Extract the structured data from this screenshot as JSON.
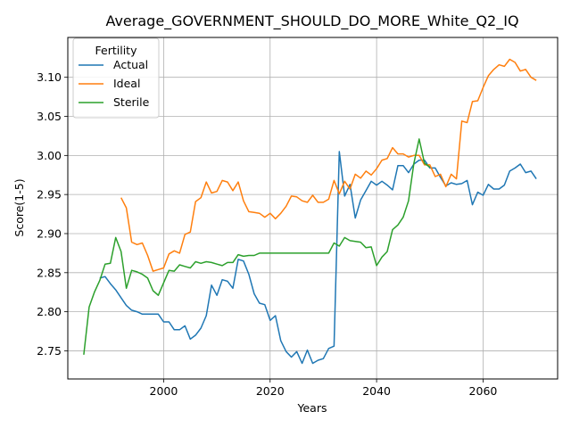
{
  "chart_data": {
    "type": "line",
    "title": "Average_GOVERNMENT_SHOULD_DO_MORE_White_Q2_IQ",
    "xlabel": "Years",
    "ylabel": "Score(1-5)",
    "xlim": [
      1982,
      2074
    ],
    "ylim": [
      2.714,
      3.151
    ],
    "xticks": [
      2000,
      2020,
      2040,
      2060
    ],
    "yticks": [
      2.75,
      2.8,
      2.85,
      2.9,
      2.95,
      3.0,
      3.05,
      3.1
    ],
    "grid": true,
    "legend": {
      "title": "Fertility",
      "placement": "top-left"
    },
    "series": [
      {
        "name": "Actual",
        "color": "#1f77b4",
        "x": [
          1988,
          1989,
          1990,
          1991,
          1992,
          1993,
          1994,
          1995,
          1996,
          1997,
          1998,
          1999,
          2000,
          2001,
          2002,
          2003,
          2004,
          2005,
          2006,
          2007,
          2008,
          2009,
          2010,
          2011,
          2012,
          2013,
          2014,
          2015,
          2016,
          2017,
          2018,
          2019,
          2020,
          2021,
          2022,
          2023,
          2024,
          2025,
          2026,
          2027,
          2028,
          2029,
          2030,
          2031,
          2032,
          2033,
          2034,
          2035,
          2036,
          2037,
          2038,
          2039,
          2040,
          2041,
          2042,
          2043,
          2044,
          2045,
          2046,
          2047,
          2048,
          2049,
          2050,
          2051,
          2052,
          2053,
          2054,
          2055,
          2056,
          2057,
          2058,
          2059,
          2060,
          2061,
          2062,
          2063,
          2064,
          2065,
          2066,
          2067,
          2068,
          2069,
          2070
        ],
        "values": [
          2.843,
          2.845,
          2.836,
          2.828,
          2.818,
          2.808,
          2.802,
          2.8,
          2.797,
          2.797,
          2.797,
          2.797,
          2.787,
          2.787,
          2.777,
          2.777,
          2.782,
          2.765,
          2.77,
          2.779,
          2.795,
          2.834,
          2.821,
          2.841,
          2.839,
          2.83,
          2.867,
          2.865,
          2.848,
          2.823,
          2.811,
          2.809,
          2.789,
          2.795,
          2.763,
          2.749,
          2.742,
          2.749,
          2.734,
          2.751,
          2.734,
          2.738,
          2.74,
          2.753,
          2.756,
          3.005,
          2.948,
          2.963,
          2.92,
          2.943,
          2.955,
          2.967,
          2.962,
          2.967,
          2.962,
          2.956,
          2.987,
          2.987,
          2.978,
          2.989,
          2.994,
          2.994,
          2.984,
          2.984,
          2.972,
          2.961,
          2.965,
          2.963,
          2.964,
          2.968,
          2.937,
          2.953,
          2.949,
          2.963,
          2.957,
          2.957,
          2.962,
          2.98,
          2.984,
          2.989,
          2.978,
          2.98,
          2.97
        ]
      },
      {
        "name": "Ideal",
        "color": "#ff7f0e",
        "x": [
          1992,
          1993,
          1994,
          1995,
          1996,
          1997,
          1998,
          1999,
          2000,
          2001,
          2002,
          2003,
          2004,
          2005,
          2006,
          2007,
          2008,
          2009,
          2010,
          2011,
          2012,
          2013,
          2014,
          2015,
          2016,
          2017,
          2018,
          2019,
          2020,
          2021,
          2022,
          2023,
          2024,
          2025,
          2026,
          2027,
          2028,
          2029,
          2030,
          2031,
          2032,
          2033,
          2034,
          2035,
          2036,
          2037,
          2038,
          2039,
          2040,
          2041,
          2042,
          2043,
          2044,
          2045,
          2046,
          2047,
          2048,
          2049,
          2050,
          2051,
          2052,
          2053,
          2054,
          2055,
          2056,
          2057,
          2058,
          2059,
          2060,
          2061,
          2062,
          2063,
          2064,
          2065,
          2066,
          2067,
          2068,
          2069,
          2070
        ],
        "values": [
          2.946,
          2.933,
          2.889,
          2.886,
          2.888,
          2.872,
          2.852,
          2.854,
          2.856,
          2.874,
          2.878,
          2.875,
          2.899,
          2.902,
          2.941,
          2.946,
          2.966,
          2.952,
          2.954,
          2.968,
          2.966,
          2.955,
          2.966,
          2.942,
          2.928,
          2.927,
          2.926,
          2.921,
          2.926,
          2.919,
          2.926,
          2.935,
          2.948,
          2.947,
          2.942,
          2.94,
          2.949,
          2.94,
          2.94,
          2.944,
          2.968,
          2.951,
          2.967,
          2.957,
          2.976,
          2.971,
          2.98,
          2.975,
          2.983,
          2.994,
          2.996,
          3.01,
          3.002,
          3.002,
          2.998,
          3.0,
          3.0,
          2.988,
          2.988,
          2.973,
          2.976,
          2.96,
          2.976,
          2.97,
          3.044,
          3.042,
          3.069,
          3.07,
          3.087,
          3.102,
          3.11,
          3.116,
          3.114,
          3.123,
          3.119,
          3.108,
          3.11,
          3.1,
          3.096
        ]
      },
      {
        "name": "Sterile",
        "color": "#2ca02c",
        "x": [
          1985,
          1986,
          1987,
          1988,
          1989,
          1990,
          1991,
          1992,
          1993,
          1994,
          1995,
          1996,
          1997,
          1998,
          1999,
          2000,
          2001,
          2002,
          2003,
          2004,
          2005,
          2006,
          2007,
          2008,
          2009,
          2010,
          2011,
          2012,
          2013,
          2014,
          2015,
          2016,
          2017,
          2018,
          2019,
          2020,
          2021,
          2022,
          2023,
          2024,
          2025,
          2026,
          2027,
          2028,
          2029,
          2030,
          2031,
          2032,
          2033,
          2034,
          2035,
          2036,
          2037,
          2038,
          2039,
          2040,
          2041,
          2042,
          2043,
          2044,
          2045,
          2046,
          2047,
          2048,
          2049,
          2050
        ],
        "values": [
          2.745,
          2.806,
          2.825,
          2.84,
          2.861,
          2.862,
          2.895,
          2.877,
          2.83,
          2.853,
          2.851,
          2.848,
          2.843,
          2.827,
          2.821,
          2.837,
          2.853,
          2.852,
          2.86,
          2.858,
          2.856,
          2.864,
          2.862,
          2.864,
          2.863,
          2.861,
          2.859,
          2.863,
          2.863,
          2.873,
          2.871,
          2.872,
          2.872,
          2.875,
          2.875,
          2.875,
          2.875,
          2.875,
          2.875,
          2.875,
          2.875,
          2.875,
          2.875,
          2.875,
          2.875,
          2.875,
          2.875,
          2.888,
          2.884,
          2.895,
          2.891,
          2.89,
          2.889,
          2.882,
          2.883,
          2.859,
          2.87,
          2.877,
          2.905,
          2.911,
          2.921,
          2.942,
          2.99,
          3.021,
          2.99,
          2.985
        ]
      }
    ]
  }
}
